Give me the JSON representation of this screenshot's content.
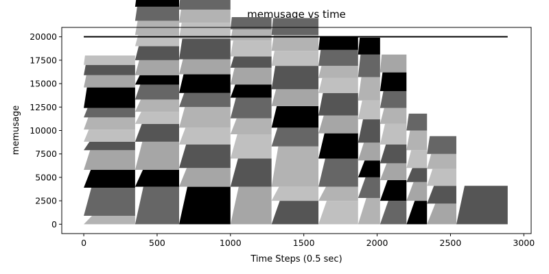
{
  "chart_data": {
    "type": "area",
    "stacked": true,
    "title": "memusage vs time",
    "xlabel": "Time Steps (0.5 sec)",
    "ylabel": "memusage",
    "xlim": [
      -150,
      3050
    ],
    "ylim": [
      -1000,
      21000
    ],
    "xticks": [
      0,
      500,
      1000,
      1500,
      2000,
      2500,
      3000
    ],
    "yticks": [
      0,
      2500,
      5000,
      7500,
      10000,
      12500,
      15000,
      17500,
      20000
    ],
    "grid": false,
    "legend": "none",
    "palette": [
      "#b3b3b3",
      "#666666",
      "#000000",
      "#a6a6a6",
      "#555555",
      "#c0c0c0"
    ],
    "limit_line": {
      "y": 20000,
      "x_range": [
        0,
        2890
      ],
      "color": "#000000"
    },
    "segments": [
      {
        "x0": 0,
        "x1": 350,
        "layers": [
          900,
          3000,
          1900,
          2100,
          900,
          1300,
          1300,
          1000,
          2200,
          1300,
          1100,
          1000
        ]
      },
      {
        "x0": 350,
        "x1": 650,
        "layers": [
          4000,
          1800,
          3000,
          1900,
          1300,
          1300,
          1600,
          1000,
          1600,
          1500,
          1200,
          1500,
          1500,
          1200,
          1600
        ]
      },
      {
        "x0": 650,
        "x1": 1000,
        "layers": [
          4000,
          2000,
          2500,
          1800,
          2200,
          1500,
          2000,
          1600,
          2200,
          1700,
          1400,
          1600
        ]
      },
      {
        "x0": 1000,
        "x1": 1280,
        "layers": [
          4000,
          3000,
          2600,
          1700,
          2200,
          1400,
          1800,
          1200,
          1700,
          1200,
          1300
        ]
      },
      {
        "x0": 1280,
        "x1": 1600,
        "layers": [
          2500,
          1500,
          4300,
          2000,
          2300,
          1800,
          2500,
          1600,
          1700,
          1800
        ]
      },
      {
        "x0": 1600,
        "x1": 1870,
        "layers": [
          2500,
          1500,
          3000,
          2700,
          1900,
          2400,
          1600,
          1300,
          1700,
          1400
        ]
      },
      {
        "x0": 1870,
        "x1": 2020,
        "layers": [
          2800,
          2200,
          1800,
          1900,
          2500,
          2000,
          2500,
          2400,
          1800
        ]
      },
      {
        "x0": 2020,
        "x1": 2200,
        "layers": [
          2500,
          2200,
          1800,
          2000,
          2200,
          1700,
          1800,
          2000,
          1900
        ]
      },
      {
        "x0": 2200,
        "x1": 2340,
        "layers": [
          2500,
          2000,
          1500,
          1900,
          2100,
          1800
        ]
      },
      {
        "x0": 2340,
        "x1": 2540,
        "layers": [
          2200,
          1900,
          1800,
          1600,
          1900
        ]
      },
      {
        "x0": 2540,
        "x1": 2890,
        "layers": [
          4100
        ]
      }
    ]
  }
}
